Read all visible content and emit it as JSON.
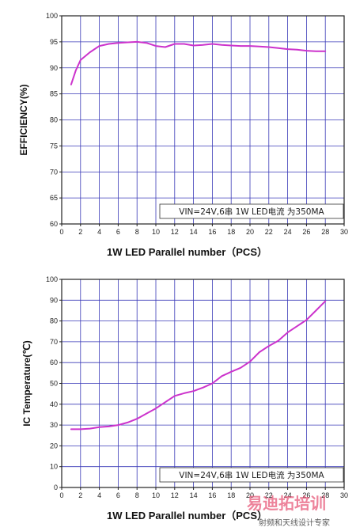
{
  "chart_data": [
    {
      "type": "line",
      "xlabel": "1W  LED Parallel number（PCS）",
      "ylabel": "EFFICIENCY(%)",
      "xlim": [
        0,
        30
      ],
      "ylim": [
        60,
        100
      ],
      "x_ticks": [
        "0",
        "2",
        "4",
        "6",
        "8",
        "10",
        "12",
        "14",
        "16",
        "18",
        "20",
        "22",
        "24",
        "26",
        "28",
        "30"
      ],
      "y_ticks": [
        "60",
        "65",
        "70",
        "75",
        "80",
        "85",
        "90",
        "95",
        "100"
      ],
      "grid": true,
      "annotation": "VIN=24V,6串 1W LED电流 为350MA",
      "series_color": "#cc33cc",
      "x": [
        1,
        1.5,
        2,
        3,
        4,
        5,
        6,
        7,
        8,
        9,
        10,
        11,
        12,
        13,
        14,
        15,
        16,
        17,
        18,
        19,
        20,
        21,
        22,
        23,
        24,
        25,
        26,
        27,
        28
      ],
      "y": [
        86.8,
        89.5,
        91.5,
        93,
        94.2,
        94.6,
        94.8,
        94.9,
        95.0,
        94.8,
        94.2,
        94.0,
        94.6,
        94.6,
        94.3,
        94.4,
        94.6,
        94.4,
        94.3,
        94.2,
        94.2,
        94.1,
        94.0,
        93.8,
        93.6,
        93.5,
        93.3,
        93.2,
        93.2
      ]
    },
    {
      "type": "line",
      "xlabel": "1W  LED Parallel number（PCS）",
      "ylabel": "IC Temperature(℃)",
      "xlim": [
        0,
        30
      ],
      "ylim": [
        0,
        100
      ],
      "x_ticks": [
        "0",
        "2",
        "4",
        "6",
        "8",
        "10",
        "12",
        "14",
        "16",
        "18",
        "20",
        "22",
        "24",
        "26",
        "28",
        "30"
      ],
      "y_ticks": [
        "0",
        "10",
        "20",
        "30",
        "40",
        "50",
        "60",
        "70",
        "80",
        "90",
        "100"
      ],
      "grid": true,
      "annotation": "VIN=24V,6串 1W LED电流 为350MA",
      "series_color": "#cc33cc",
      "x": [
        1,
        2,
        3,
        4,
        5,
        6,
        7,
        8,
        9,
        10,
        11,
        12,
        13,
        14,
        15,
        16,
        17,
        18,
        19,
        20,
        21,
        22,
        23,
        24,
        25,
        26,
        27,
        28
      ],
      "y": [
        28,
        28,
        28.3,
        29,
        29.3,
        30,
        31.2,
        33,
        35.5,
        38,
        41,
        44,
        45.3,
        46.3,
        48,
        50,
        53.5,
        55.6,
        57.5,
        60.5,
        65,
        68,
        70.5,
        74.5,
        77.5,
        80.5,
        85,
        89.5
      ]
    }
  ],
  "watermark": {
    "line1": "易迪拓培训",
    "line2": "射频和天线设计专家",
    "color": "#e85a7a"
  }
}
